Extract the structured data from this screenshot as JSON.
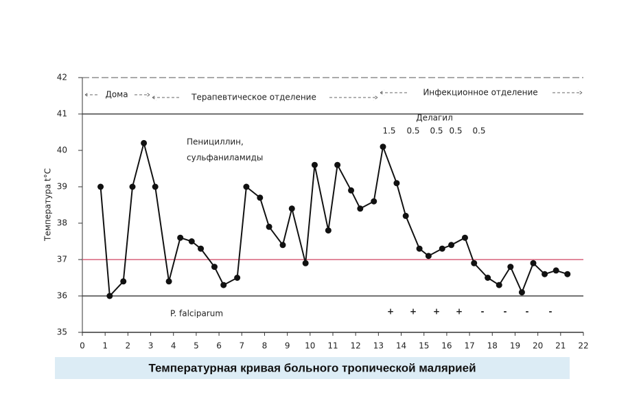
{
  "chart_data": {
    "type": "line",
    "title": "Температурная кривая больного тропической малярией",
    "y_label": "Температура  t°C",
    "x": [
      0.8,
      1.2,
      1.8,
      2.2,
      2.7,
      3.2,
      3.8,
      4.3,
      4.8,
      5.2,
      5.8,
      6.2,
      6.8,
      7.2,
      7.8,
      8.2,
      8.8,
      9.2,
      9.8,
      10.2,
      10.8,
      11.2,
      11.8,
      12.2,
      12.8,
      13.2,
      13.8,
      14.2,
      14.8,
      15.2,
      15.8,
      16.2,
      16.8,
      17.2,
      17.8,
      18.3,
      18.8,
      19.3,
      19.8,
      20.3,
      20.8,
      21.3
    ],
    "series": [
      {
        "name": "Температура",
        "color": "#111111",
        "values": [
          39.0,
          36.0,
          36.4,
          39.0,
          40.2,
          39.0,
          36.4,
          37.6,
          37.5,
          37.3,
          36.8,
          36.3,
          36.5,
          39.0,
          38.7,
          37.9,
          37.4,
          38.4,
          36.9,
          39.6,
          37.8,
          39.6,
          38.9,
          38.4,
          38.6,
          40.1,
          39.1,
          38.2,
          37.3,
          37.1,
          37.3,
          37.4,
          37.6,
          36.9,
          36.5,
          36.3,
          36.8,
          36.1,
          36.9,
          36.6,
          36.7,
          36.6
        ]
      }
    ],
    "xlim": [
      0,
      22
    ],
    "xticks": [
      0,
      1,
      2,
      3,
      4,
      5,
      6,
      7,
      8,
      9,
      10,
      11,
      12,
      13,
      14,
      15,
      16,
      17,
      18,
      19,
      20,
      21,
      22
    ],
    "ylim": [
      35,
      42
    ],
    "yticks": [
      35,
      36,
      37,
      38,
      39,
      40,
      41,
      42
    ],
    "grid_lines": [
      41,
      36
    ],
    "reference_line": {
      "value": 37,
      "color": "#d9607a"
    },
    "annotations": {
      "periods": [
        "Дома",
        "Терапевтическое отделение",
        "Инфекционное отделение"
      ],
      "treatment": [
        "Пенициллин,",
        "сульфаниламиды"
      ],
      "drug": "Делагил",
      "doses": [
        "1.5",
        "0.5",
        "0.5",
        "0.5",
        "0.5"
      ],
      "pathogen": "P. falciparum",
      "findings": [
        "+",
        "+",
        "+",
        "+",
        "-",
        "-",
        "-",
        "-"
      ]
    }
  }
}
